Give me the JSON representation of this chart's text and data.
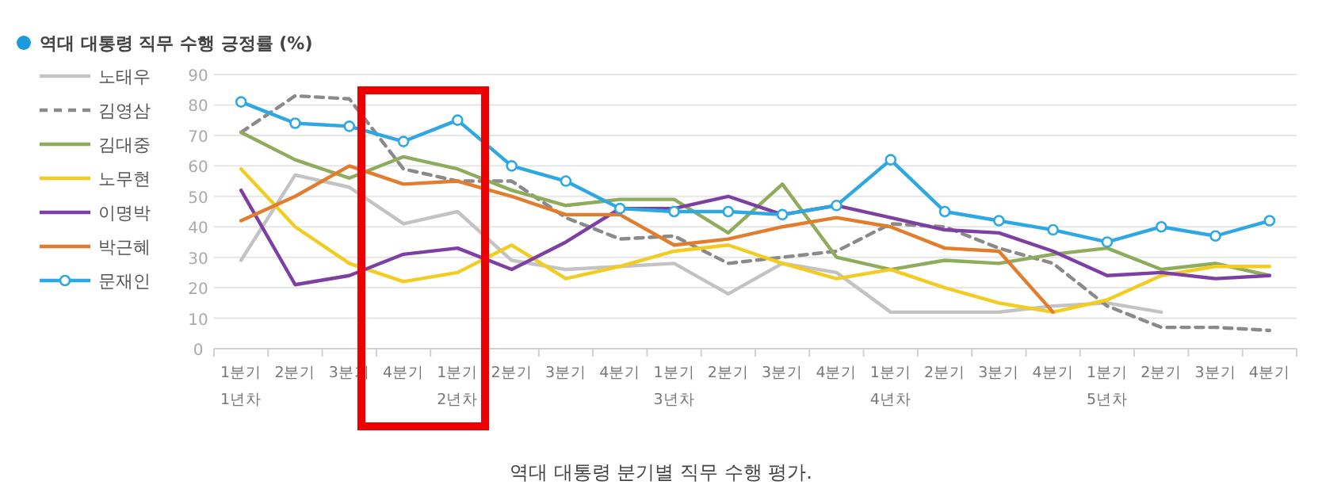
{
  "chart_data": {
    "type": "line",
    "title": "역대 대통령 직무 수행 긍정률 (%)",
    "categories": [
      "1분기\n1년차",
      "2분기",
      "3분기",
      "4분기",
      "1분기\n2년차",
      "2분기",
      "3분기",
      "4분기",
      "1분기\n3년차",
      "2분기",
      "3분기",
      "4분기",
      "1분기\n4년차",
      "2분기",
      "3분기",
      "4분기",
      "1분기\n5년차",
      "2분기",
      "3분기",
      "4분기"
    ],
    "series": [
      {
        "name": "노태우",
        "color": "#c3c3c3",
        "values": [
          29,
          57,
          53,
          41,
          45,
          29,
          26,
          27,
          28,
          18,
          28,
          25,
          12,
          12,
          12,
          14,
          15,
          12,
          null,
          null
        ]
      },
      {
        "name": "김영삼",
        "color": "#8a8a8a",
        "line_style": "dashed",
        "values": [
          71,
          83,
          82,
          59,
          55,
          55,
          43,
          36,
          37,
          28,
          30,
          32,
          41,
          40,
          33,
          28,
          14,
          7,
          7,
          6
        ]
      },
      {
        "name": "김대중",
        "color": "#8fab5c",
        "values": [
          71,
          62,
          56,
          63,
          59,
          52,
          47,
          49,
          49,
          38,
          54,
          30,
          26,
          29,
          28,
          31,
          33,
          26,
          28,
          24
        ]
      },
      {
        "name": "노무현",
        "color": "#f3cc22",
        "values": [
          59,
          40,
          28,
          22,
          25,
          34,
          23,
          27,
          32,
          34,
          28,
          23,
          26,
          20,
          15,
          12,
          16,
          24,
          27,
          27
        ]
      },
      {
        "name": "이명박",
        "color": "#7d40a2",
        "values": [
          52,
          21,
          24,
          31,
          33,
          26,
          35,
          46,
          46,
          50,
          44,
          47,
          43,
          39,
          38,
          32,
          24,
          25,
          23,
          24
        ]
      },
      {
        "name": "박근혜",
        "color": "#e27d2e",
        "values": [
          42,
          50,
          60,
          54,
          55,
          50,
          44,
          44,
          34,
          36,
          40,
          43,
          40,
          33,
          32,
          12,
          null,
          null,
          null,
          null
        ]
      },
      {
        "name": "문재인",
        "color": "#2ea8e2",
        "marker": "circle",
        "values": [
          81,
          74,
          73,
          68,
          75,
          60,
          55,
          46,
          45,
          45,
          44,
          47,
          62,
          45,
          42,
          39,
          35,
          40,
          37,
          42
        ]
      }
    ],
    "ylim": [
      0,
      90
    ],
    "yticks": [
      0,
      10,
      20,
      30,
      40,
      50,
      60,
      70,
      80,
      90
    ],
    "grid": "y",
    "legend": "left",
    "annotations": [
      "역대 대통령 분기별 직무 수행 평가."
    ]
  }
}
